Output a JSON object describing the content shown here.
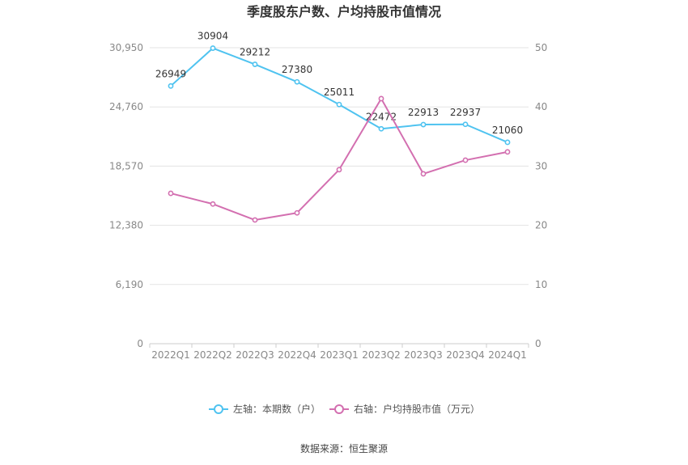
{
  "chart_data": {
    "type": "line",
    "title": "季度股东户数、户均持股市值情况",
    "categories": [
      "2022Q1",
      "2022Q2",
      "2022Q3",
      "2022Q4",
      "2023Q1",
      "2023Q2",
      "2023Q3",
      "2023Q4",
      "2024Q1"
    ],
    "left_axis": {
      "min": 0,
      "max": 30950,
      "ticks": [
        "0",
        "6,190",
        "12,380",
        "18,570",
        "24,760",
        "30,950"
      ]
    },
    "right_axis": {
      "min": 0,
      "max": 50,
      "ticks": [
        "0",
        "10",
        "20",
        "30",
        "40",
        "50"
      ]
    },
    "series": [
      {
        "name": "左轴：本期数（户）",
        "axis": "left",
        "color": "#4fc3f0",
        "values": [
          26949,
          30904,
          29212,
          27380,
          25011,
          22472,
          22913,
          22937,
          21060
        ],
        "labels": [
          "26949",
          "30904",
          "29212",
          "27380",
          "25011",
          "22472",
          "22913",
          "22937",
          "21060"
        ]
      },
      {
        "name": "右轴：户均持股市值（万元）",
        "axis": "right",
        "color": "#d36fb0",
        "values": [
          25.4,
          23.6,
          20.9,
          22.1,
          29.4,
          41.4,
          28.7,
          31.0,
          32.4
        ]
      }
    ],
    "grid": true,
    "legend_position": "bottom"
  },
  "source": "数据来源：恒生聚源"
}
